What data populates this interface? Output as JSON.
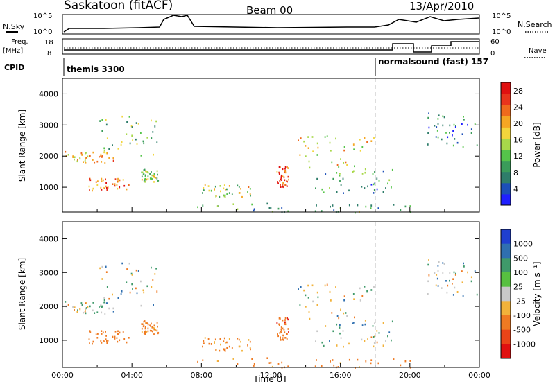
{
  "header": {
    "title": "Saskatoon (fitACF)",
    "beam": "Beam 00",
    "date": "13/Apr/2010"
  },
  "strips": {
    "nsky_label": "N.Sky",
    "nsearch_label": "N.Search",
    "freq_label_line1": "Freq.",
    "freq_label_line2": "[MHz]",
    "nave_label": "Nave",
    "cpid_label": "CPID",
    "count_ticks_left": [
      "10^5",
      "10^0"
    ],
    "count_ticks_right": [
      "10^5",
      "10^0"
    ],
    "freq_ticks": [
      "18",
      "8"
    ],
    "nave_ticks": [
      "60",
      "0"
    ],
    "cpid_segments": [
      {
        "label": "themis 3300",
        "start_hour": 0,
        "end_hour": 18
      },
      {
        "label": "normalsound (fast) 157",
        "start_hour": 18,
        "end_hour": 24
      }
    ]
  },
  "power_colorbar": {
    "label": "Power [dB]",
    "ticks": [
      "28",
      "24",
      "20",
      "16",
      "12",
      "8",
      "4"
    ],
    "colors": [
      "#1f1fff",
      "#1c4fb8",
      "#2e7d6a",
      "#3a9c5a",
      "#55c44a",
      "#a8d84a",
      "#f2d53c",
      "#f5a623",
      "#ef6a1d",
      "#e8341c",
      "#e01010"
    ]
  },
  "velocity_colorbar": {
    "label": "Velocity [m s⁻¹]",
    "ticks": [
      "1000",
      "500",
      "100",
      "25",
      "-25",
      "-100",
      "-500",
      "-1000"
    ],
    "colors": [
      "#1f3fd0",
      "#2f6fb0",
      "#3f9a6a",
      "#57c040",
      "#c8c8c8",
      "#f2b23a",
      "#ef7a22",
      "#ea4418",
      "#e01010"
    ]
  },
  "chart_data": [
    {
      "type": "heatmap",
      "name": "power",
      "ylabel": "Slant Range [km]",
      "xlabel": "",
      "ylim": [
        200,
        4500
      ],
      "xlim_hours": [
        0,
        24
      ],
      "yticks": [
        "1000",
        "2000",
        "3000",
        "4000"
      ],
      "xticks": [
        "00:00",
        "04:00",
        "08:00",
        "12:00",
        "16:00",
        "20:00",
        "00:00"
      ],
      "scatter_regions": [
        {
          "hours": [
            0.0,
            3.0
          ],
          "range_km": [
            1800,
            2200
          ],
          "power_db": 20
        },
        {
          "hours": [
            2.0,
            5.5
          ],
          "range_km": [
            2000,
            3300
          ],
          "power_db": 12
        },
        {
          "hours": [
            1.5,
            3.8
          ],
          "range_km": [
            900,
            1300
          ],
          "power_db": 24
        },
        {
          "hours": [
            4.5,
            5.5
          ],
          "range_km": [
            1200,
            1600
          ],
          "power_db": 14
        },
        {
          "hours": [
            8.0,
            11.0
          ],
          "range_km": [
            700,
            1100
          ],
          "power_db": 16
        },
        {
          "hours": [
            12.3,
            13.0
          ],
          "range_km": [
            1000,
            1700
          ],
          "power_db": 26
        },
        {
          "hours": [
            13.5,
            18.0
          ],
          "range_km": [
            1600,
            2700
          ],
          "power_db": 18
        },
        {
          "hours": [
            14.5,
            19.0
          ],
          "range_km": [
            800,
            1600
          ],
          "power_db": 8
        },
        {
          "hours": [
            21.0,
            24.0
          ],
          "range_km": [
            2300,
            3500
          ],
          "power_db": 6
        },
        {
          "hours": [
            7.0,
            20.0
          ],
          "range_km": [
            200,
            500
          ],
          "power_db": 10
        }
      ]
    },
    {
      "type": "heatmap",
      "name": "velocity",
      "ylabel": "Slant Range [km]",
      "xlabel": "Time UT",
      "ylim": [
        200,
        4500
      ],
      "xlim_hours": [
        0,
        24
      ],
      "yticks": [
        "1000",
        "2000",
        "3000",
        "4000"
      ],
      "xticks": [
        "00:00",
        "04:00",
        "08:00",
        "12:00",
        "16:00",
        "20:00",
        "00:00"
      ],
      "scatter_regions": [
        {
          "hours": [
            0.0,
            3.0
          ],
          "range_km": [
            1800,
            2200
          ],
          "velocity": 0
        },
        {
          "hours": [
            2.0,
            5.5
          ],
          "range_km": [
            2000,
            3300
          ],
          "velocity": 0
        },
        {
          "hours": [
            1.5,
            3.8
          ],
          "range_km": [
            900,
            1300
          ],
          "velocity": -300
        },
        {
          "hours": [
            4.5,
            5.5
          ],
          "range_km": [
            1200,
            1600
          ],
          "velocity": -200
        },
        {
          "hours": [
            8.0,
            11.0
          ],
          "range_km": [
            700,
            1100
          ],
          "velocity": -150
        },
        {
          "hours": [
            12.3,
            13.0
          ],
          "range_km": [
            1000,
            1700
          ],
          "velocity": -400
        },
        {
          "hours": [
            13.5,
            18.0
          ],
          "range_km": [
            1600,
            2700
          ],
          "velocity": 0
        },
        {
          "hours": [
            14.5,
            19.0
          ],
          "range_km": [
            800,
            1600
          ],
          "velocity": 0
        },
        {
          "hours": [
            21.0,
            24.0
          ],
          "range_km": [
            2300,
            3500
          ],
          "velocity": 0
        },
        {
          "hours": [
            7.0,
            20.0
          ],
          "range_km": [
            200,
            500
          ],
          "velocity": -200
        }
      ]
    }
  ]
}
